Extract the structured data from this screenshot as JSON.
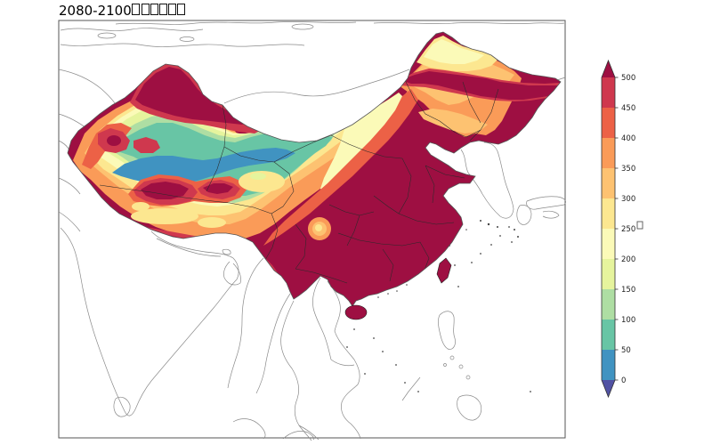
{
  "title": {
    "prefix": "2080-2100",
    "missing_glyph_count": 6,
    "note": "six CJK characters rendered as empty glyph boxes"
  },
  "colorbar": {
    "ticks": [
      "500",
      "450",
      "400",
      "350",
      "300",
      "250",
      "200",
      "150",
      "100",
      "50",
      "0"
    ],
    "orientation": "vertical",
    "extend": "both",
    "unit_label_missing_glyph": true,
    "colors": {
      "over": "#9e0f42",
      "c450_500": "#cf384e",
      "c400_450": "#ec6146",
      "c350_400": "#fa9b58",
      "c300_350": "#fdc271",
      "c250_300": "#fce790",
      "c200_250": "#fbfab8",
      "c150_200": "#e6f49d",
      "c100_150": "#aedea3",
      "c50_100": "#68c5a5",
      "c0_50": "#4093c1",
      "under": "#5152a3"
    }
  },
  "map": {
    "frame_color": "#555555",
    "coastline_color": "#8a8a8a",
    "border_color": "#2a2a2a",
    "background": "#ffffff"
  },
  "chart_data": {
    "type": "heatmap",
    "title": "2080-2100□□□□□□",
    "levels": [
      0,
      50,
      100,
      150,
      200,
      250,
      300,
      350,
      400,
      450,
      500
    ],
    "colors": [
      "#5152a3",
      "#4093c1",
      "#68c5a5",
      "#aedea3",
      "#e6f49d",
      "#fbfab8",
      "#fce790",
      "#fdc271",
      "#fa9b58",
      "#ec6146",
      "#cf384e",
      "#9e0f42"
    ],
    "legend_position": "right",
    "region_depicted": "Filled contours over China; surrounding Asia drawn as unfilled coastlines",
    "visual_summary": "Values exceed 500 (dark maroon) over most of eastern, southern and northeastern China and Tibet margins; a low band (0-100, blue/teal) crosses the Tarim Basin through Gansu into Inner Mongolia; northern Xinjiang is above 500; far-north Heilongjiang is 200-300; a small 250-400 ring sits over the Sichuan Basin."
  }
}
